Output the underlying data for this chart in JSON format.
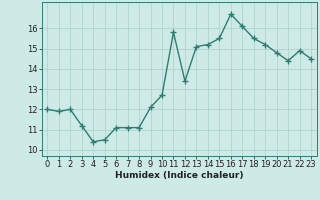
{
  "x": [
    0,
    1,
    2,
    3,
    4,
    5,
    6,
    7,
    8,
    9,
    10,
    11,
    12,
    13,
    14,
    15,
    16,
    17,
    18,
    19,
    20,
    21,
    22,
    23
  ],
  "y": [
    12.0,
    11.9,
    12.0,
    11.2,
    10.4,
    10.5,
    11.1,
    11.1,
    11.1,
    12.1,
    12.7,
    15.8,
    13.4,
    15.1,
    15.2,
    15.5,
    16.7,
    16.1,
    15.5,
    15.2,
    14.8,
    14.4,
    14.9,
    14.5
  ],
  "line_color": "#2e7d6e",
  "marker": "+",
  "marker_size": 4.0,
  "marker_lw": 1.0,
  "bg_color": "#ceeae7",
  "grid_color": "#b0d4d0",
  "xlabel": "Humidex (Indice chaleur)",
  "ylabel_ticks": [
    10,
    11,
    12,
    13,
    14,
    15,
    16
  ],
  "ylim": [
    9.7,
    17.3
  ],
  "xlim": [
    -0.5,
    23.5
  ],
  "xtick_labels": [
    "0",
    "1",
    "2",
    "3",
    "4",
    "5",
    "6",
    "7",
    "8",
    "9",
    "10",
    "11",
    "12",
    "13",
    "14",
    "15",
    "16",
    "17",
    "18",
    "19",
    "20",
    "21",
    "22",
    "23"
  ],
  "xlabel_fontsize": 6.5,
  "tick_fontsize": 6.0,
  "line_width": 1.0,
  "spine_color": "#2e7d6e"
}
